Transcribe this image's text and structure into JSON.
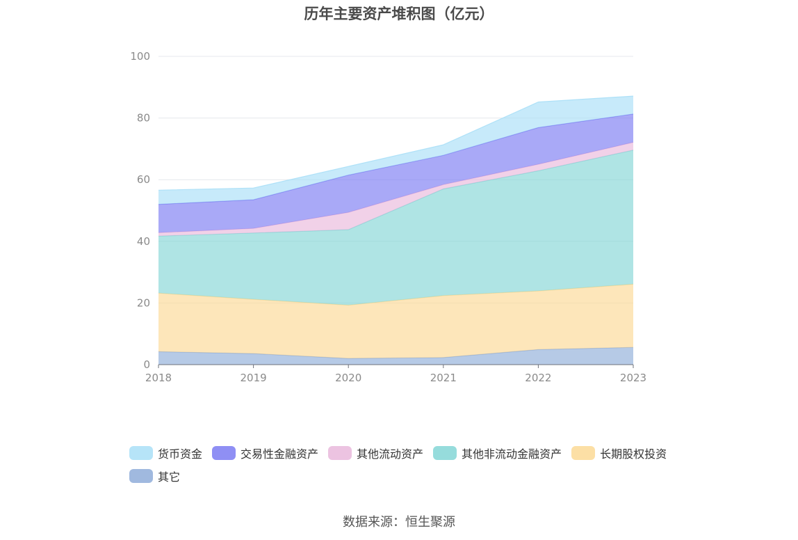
{
  "title": "历年主要资产堆积图（亿元）",
  "source": "数据来源：恒生聚源",
  "chart_data": {
    "type": "area",
    "stacked": true,
    "categories": [
      "2018",
      "2019",
      "2020",
      "2021",
      "2022",
      "2023"
    ],
    "ylim": [
      0,
      100
    ],
    "yticks": [
      0,
      20,
      40,
      60,
      80,
      100
    ],
    "grid": true,
    "legend_position": "bottom",
    "series": [
      {
        "name": "其它",
        "color": "#8fadd9",
        "values": [
          4.2,
          3.6,
          2.0,
          2.3,
          4.9,
          5.6
        ]
      },
      {
        "name": "长期股权投资",
        "color": "#fcd995",
        "values": [
          19.0,
          17.6,
          17.3,
          20.1,
          19.0,
          20.5
        ]
      },
      {
        "name": "其他非流动金融资产",
        "color": "#84d6d6",
        "values": [
          18.5,
          21.5,
          24.5,
          34.6,
          39.0,
          43.5
        ]
      },
      {
        "name": "其他流动资产",
        "color": "#e9b9dc",
        "values": [
          1.1,
          1.5,
          5.6,
          1.4,
          2.1,
          2.5
        ]
      },
      {
        "name": "交易性金融资产",
        "color": "#7b7bf2",
        "values": [
          9.2,
          9.3,
          12.1,
          9.5,
          11.9,
          9.2
        ]
      },
      {
        "name": "货币资金",
        "color": "#a9dff7",
        "values": [
          4.6,
          3.8,
          2.8,
          3.4,
          8.3,
          5.8
        ]
      }
    ],
    "legend_order": [
      "货币资金",
      "交易性金融资产",
      "其他流动资产",
      "其他非流动金融资产",
      "长期股权投资",
      "其它"
    ]
  }
}
